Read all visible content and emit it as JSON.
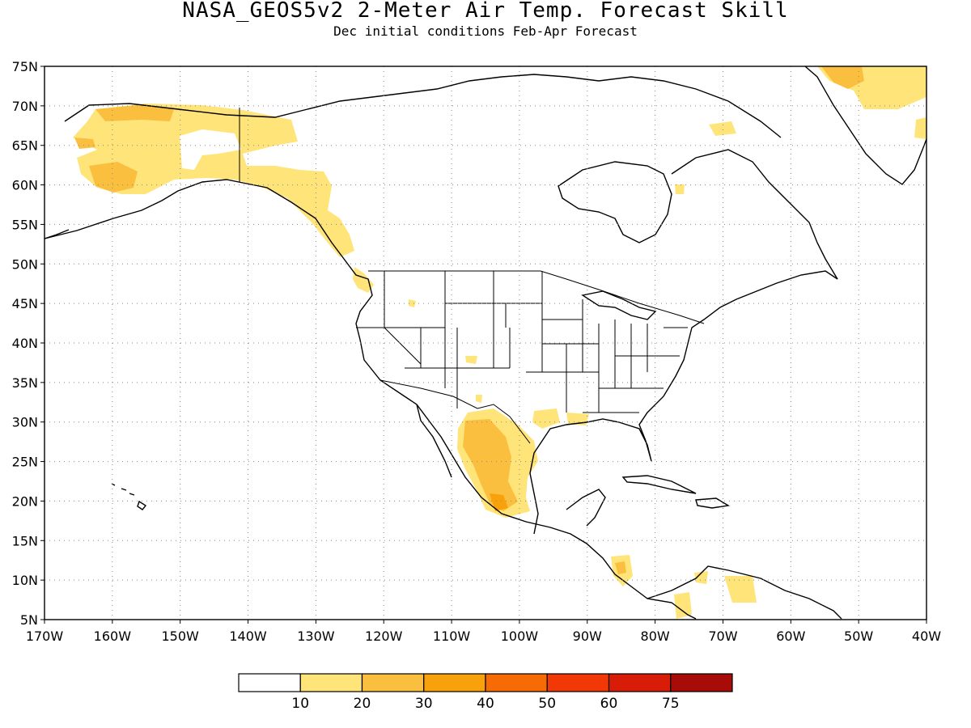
{
  "title": "NASA_GEOS5v2 2-Meter Air Temp. Forecast Skill",
  "subtitle": "Dec initial conditions  Feb-Apr Forecast",
  "map": {
    "lat_labels": [
      "75N",
      "70N",
      "65N",
      "60N",
      "55N",
      "50N",
      "45N",
      "40N",
      "35N",
      "30N",
      "25N",
      "20N",
      "15N",
      "10N",
      "5N"
    ],
    "lon_labels": [
      "170W",
      "160W",
      "150W",
      "140W",
      "130W",
      "120W",
      "110W",
      "100W",
      "90W",
      "80W",
      "70W",
      "60W",
      "50W",
      "40W"
    ],
    "lon_range": [
      -170,
      -40
    ],
    "lat_range": [
      5,
      75
    ],
    "gridlines": "dotted"
  },
  "colorbar": {
    "colors": [
      "#ffffff",
      "#ffe47a",
      "#fbbf40",
      "#f9a10a",
      "#f76b05",
      "#f23806",
      "#d91c07",
      "#a80c08"
    ],
    "labels": [
      "10",
      "20",
      "30",
      "40",
      "50",
      "60",
      "75"
    ]
  }
}
